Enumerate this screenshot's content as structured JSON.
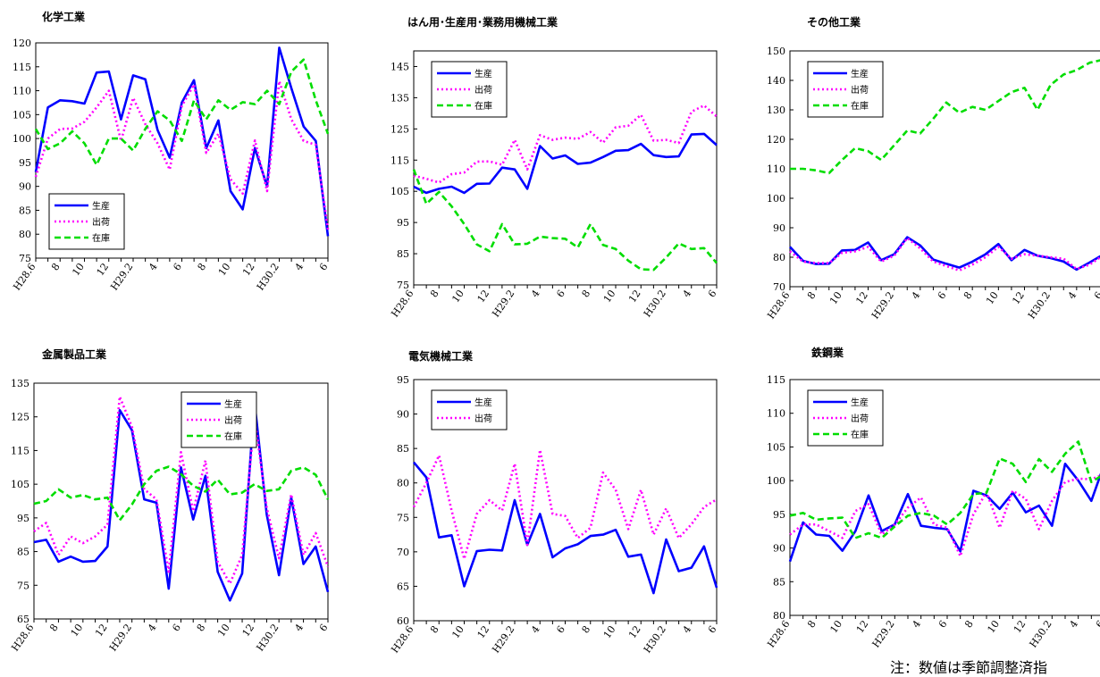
{
  "colors": {
    "production": "#0000ff",
    "shipment": "#ff00ff",
    "inventory": "#00dd00"
  },
  "x_labels": [
    "H28.6",
    "8",
    "10",
    "12",
    "H29.2",
    "4",
    "6",
    "8",
    "10",
    "12",
    "H30.2",
    "4",
    "6"
  ],
  "footnote": "注：数値は季節調整済指",
  "chart_data": [
    {
      "type": "line",
      "title": "化学工業",
      "ylim": [
        75,
        120
      ],
      "yticks": [
        75,
        80,
        85,
        90,
        95,
        100,
        105,
        110,
        115,
        120
      ],
      "legend_position": "bottom-left",
      "categories": [
        "H28.6",
        "H28.7",
        "H28.8",
        "H28.9",
        "H28.10",
        "H28.11",
        "H28.12",
        "H29.1",
        "H29.2",
        "H29.3",
        "H29.4",
        "H29.5",
        "H29.6",
        "H29.7",
        "H29.8",
        "H29.9",
        "H29.10",
        "H29.11",
        "H29.12",
        "H30.1",
        "H30.2",
        "H30.3",
        "H30.4",
        "H30.5",
        "H30.6"
      ],
      "series": [
        {
          "name": "生産",
          "key": "production",
          "values": [
            93,
            106.5,
            108,
            107.8,
            107.3,
            113.8,
            114,
            104,
            113.2,
            112.4,
            101.8,
            96,
            107.5,
            112.2,
            98,
            103.8,
            89,
            85.2,
            98,
            90,
            119,
            110.5,
            102.5,
            99.5,
            79.6
          ]
        },
        {
          "name": "出荷",
          "key": "shipment",
          "values": [
            92,
            100,
            102,
            102.1,
            103.5,
            106.5,
            110,
            99.5,
            108.5,
            103,
            99,
            93.5,
            106.8,
            111.3,
            97,
            101,
            91.5,
            88.5,
            99.6,
            89,
            112,
            104,
            99.5,
            98.7,
            81
          ]
        },
        {
          "name": "在庫",
          "key": "inventory",
          "values": [
            102,
            97.8,
            99,
            101.5,
            99,
            94.5,
            100,
            100,
            97.5,
            102,
            105.7,
            103.8,
            99.5,
            108,
            104,
            108,
            106,
            107.6,
            107.2,
            110,
            107.2,
            114,
            116.5,
            108,
            101
          ]
        }
      ]
    },
    {
      "type": "line",
      "title": "はん用･生産用･業務用機械工業",
      "ylim": [
        75,
        150
      ],
      "yticks": [
        75,
        85,
        95,
        105,
        115,
        125,
        135,
        145
      ],
      "legend_position": "top-left",
      "categories": [
        "H28.6",
        "H28.7",
        "H28.8",
        "H28.9",
        "H28.10",
        "H28.11",
        "H28.12",
        "H29.1",
        "H29.2",
        "H29.3",
        "H29.4",
        "H29.5",
        "H29.6",
        "H29.7",
        "H29.8",
        "H29.9",
        "H29.10",
        "H29.11",
        "H29.12",
        "H30.1",
        "H30.2",
        "H30.3",
        "H30.4",
        "H30.5",
        "H30.6"
      ],
      "series": [
        {
          "name": "生産",
          "key": "production",
          "values": [
            106.5,
            104.5,
            105.8,
            106.5,
            104.5,
            107.4,
            107.5,
            112.6,
            112,
            105.8,
            119.5,
            115.5,
            116.5,
            113.8,
            114.2,
            116,
            118,
            118.2,
            120.2,
            116.6,
            116,
            116.2,
            123.2,
            123.4,
            119.8
          ]
        },
        {
          "name": "出荷",
          "key": "shipment",
          "values": [
            110,
            109,
            107.8,
            110.5,
            111,
            114.5,
            114.6,
            113.5,
            121.5,
            112,
            123,
            121.5,
            122.2,
            121.8,
            124,
            120.6,
            125.5,
            126,
            129.5,
            121.2,
            121.5,
            120.5,
            130.5,
            132.5,
            129
          ]
        },
        {
          "name": "在庫",
          "key": "inventory",
          "values": [
            112,
            101,
            104.8,
            100.2,
            94.5,
            88,
            85.8,
            94.5,
            88,
            88.2,
            90.5,
            90,
            89.8,
            87,
            94.5,
            87.8,
            86.5,
            82.8,
            80,
            79.8,
            83.8,
            88.3,
            86.5,
            86.8,
            82
          ]
        }
      ]
    },
    {
      "type": "line",
      "title": "その他工業",
      "ylim": [
        70,
        150
      ],
      "yticks": [
        70,
        80,
        90,
        100,
        110,
        120,
        130,
        140,
        150
      ],
      "legend_position": "top-left",
      "categories": [
        "H28.6",
        "H28.7",
        "H28.8",
        "H28.9",
        "H28.10",
        "H28.11",
        "H28.12",
        "H29.1",
        "H29.2",
        "H29.3",
        "H29.4",
        "H29.5",
        "H29.6",
        "H29.7",
        "H29.8",
        "H29.9",
        "H29.10",
        "H29.11",
        "H29.12",
        "H30.1",
        "H30.2",
        "H30.3",
        "H30.4",
        "H30.5",
        "H30.6"
      ],
      "series": [
        {
          "name": "生産",
          "key": "production",
          "values": [
            83.5,
            78.8,
            77.7,
            77.8,
            82.3,
            82.5,
            85,
            79,
            81,
            86.8,
            84,
            79.2,
            77.8,
            76.5,
            78.5,
            81,
            84.5,
            79,
            82.5,
            80.5,
            79.7,
            78.5,
            75.8,
            78.2,
            80.8
          ]
        },
        {
          "name": "出荷",
          "key": "shipment",
          "values": [
            82,
            78.5,
            78,
            78,
            81.5,
            82,
            83.5,
            78.5,
            80.5,
            86.5,
            83,
            78.5,
            77,
            75.5,
            77.5,
            80,
            83.5,
            79.5,
            81,
            80.5,
            80,
            79.5,
            76,
            77.5,
            80.5
          ]
        },
        {
          "name": "在庫",
          "key": "inventory",
          "values": [
            110,
            110,
            109.5,
            108.5,
            113,
            117,
            116,
            113,
            118,
            123,
            122,
            127,
            132.5,
            129,
            131,
            130,
            133,
            136,
            137.5,
            130,
            138.5,
            142,
            143.5,
            146,
            147
          ]
        }
      ]
    },
    {
      "type": "line",
      "title": "金属製品工業",
      "ylim": [
        65,
        135
      ],
      "yticks": [
        65,
        75,
        85,
        95,
        105,
        115,
        125,
        135
      ],
      "legend_position": "top-right",
      "categories": [
        "H28.6",
        "H28.7",
        "H28.8",
        "H28.9",
        "H28.10",
        "H28.11",
        "H28.12",
        "H29.1",
        "H29.2",
        "H29.3",
        "H29.4",
        "H29.5",
        "H29.6",
        "H29.7",
        "H29.8",
        "H29.9",
        "H29.10",
        "H29.11",
        "H29.12",
        "H30.1",
        "H30.2",
        "H30.3",
        "H30.4",
        "H30.5",
        "H30.6"
      ],
      "series": [
        {
          "name": "生産",
          "key": "production",
          "values": [
            87.8,
            88.5,
            82,
            83.5,
            82,
            82.2,
            86.5,
            127,
            121,
            100.5,
            99.5,
            74,
            110,
            94.5,
            107.5,
            79,
            70.5,
            78.5,
            129.5,
            96,
            78,
            101,
            81.3,
            86.5,
            73
          ]
        },
        {
          "name": "出荷",
          "key": "shipment",
          "values": [
            91,
            93.5,
            84,
            89.5,
            87.5,
            89.5,
            93,
            131,
            122,
            103.5,
            100.5,
            79,
            114.5,
            97,
            112,
            82,
            75.5,
            84,
            125,
            98,
            83,
            102,
            84,
            90.5,
            80.5
          ]
        },
        {
          "name": "在庫",
          "key": "inventory",
          "values": [
            99.2,
            100,
            103.5,
            101,
            101.8,
            100.5,
            101,
            94.3,
            99,
            105,
            109,
            110.2,
            108,
            104.5,
            102.8,
            106.4,
            102,
            102.5,
            105,
            103,
            103.5,
            109,
            110,
            107.8,
            100.5
          ]
        }
      ]
    },
    {
      "type": "line",
      "title": "電気機械工業",
      "ylim": [
        60,
        95
      ],
      "yticks": [
        60,
        65,
        70,
        75,
        80,
        85,
        90,
        95
      ],
      "legend_position": "top-left",
      "categories": [
        "H28.6",
        "H28.7",
        "H28.8",
        "H28.9",
        "H28.10",
        "H28.11",
        "H28.12",
        "H29.1",
        "H29.2",
        "H29.3",
        "H29.4",
        "H29.5",
        "H29.6",
        "H29.7",
        "H29.8",
        "H29.9",
        "H29.10",
        "H29.11",
        "H29.12",
        "H30.1",
        "H30.2",
        "H30.3",
        "H30.4",
        "H30.5",
        "H30.6"
      ],
      "series": [
        {
          "name": "生産",
          "key": "production",
          "values": [
            83,
            80.8,
            72.1,
            72.4,
            65,
            70.1,
            70.3,
            70.2,
            77.5,
            71,
            75.5,
            69.2,
            70.5,
            71.1,
            72.3,
            72.5,
            73.2,
            69.3,
            69.6,
            64,
            71.8,
            67.2,
            67.7,
            70.8,
            64.8
          ]
        },
        {
          "name": "出荷",
          "key": "shipment",
          "values": [
            76.5,
            80,
            84,
            76,
            69,
            75.5,
            77.5,
            76,
            82.8,
            71,
            84.8,
            75.5,
            75.2,
            72,
            73.5,
            81.5,
            79,
            73.3,
            79,
            72.5,
            76.3,
            72,
            74,
            76.5,
            77.6
          ]
        }
      ]
    },
    {
      "type": "line",
      "title": "鉄鋼業",
      "ylim": [
        80,
        115
      ],
      "yticks": [
        80,
        85,
        90,
        95,
        100,
        105,
        110,
        115
      ],
      "legend_position": "top-left",
      "categories": [
        "H28.6",
        "H28.7",
        "H28.8",
        "H28.9",
        "H28.10",
        "H28.11",
        "H28.12",
        "H29.1",
        "H29.2",
        "H29.3",
        "H29.4",
        "H29.5",
        "H29.6",
        "H29.7",
        "H29.8",
        "H29.9",
        "H29.10",
        "H29.11",
        "H29.12",
        "H30.1",
        "H30.2",
        "H30.3",
        "H30.4",
        "H30.5",
        "H30.6"
      ],
      "series": [
        {
          "name": "生産",
          "key": "production",
          "values": [
            88,
            93.8,
            92,
            91.8,
            89.6,
            92.5,
            97.8,
            92.5,
            93.5,
            98,
            93.3,
            93,
            92.8,
            89.5,
            98.5,
            97.8,
            95.8,
            98.2,
            95.3,
            96.3,
            93.3,
            102.5,
            100,
            97,
            102.5
          ]
        },
        {
          "name": "出荷",
          "key": "shipment",
          "values": [
            92,
            93.5,
            93.5,
            92.5,
            91.5,
            95.5,
            96.5,
            92,
            93.5,
            96,
            97.5,
            93.5,
            93,
            88.8,
            95,
            98.3,
            93,
            98.5,
            97.3,
            92.8,
            97,
            99.8,
            100.3,
            100.2,
            101
          ]
        },
        {
          "name": "在庫",
          "key": "inventory",
          "values": [
            94.8,
            95.2,
            94.2,
            94.4,
            94.5,
            91.5,
            92.2,
            91.5,
            93.2,
            94.8,
            95.2,
            94.8,
            93.5,
            95.2,
            98,
            98.2,
            103.3,
            102.5,
            99.8,
            103.2,
            101.3,
            104,
            105.8,
            99.8,
            101
          ]
        }
      ]
    }
  ]
}
